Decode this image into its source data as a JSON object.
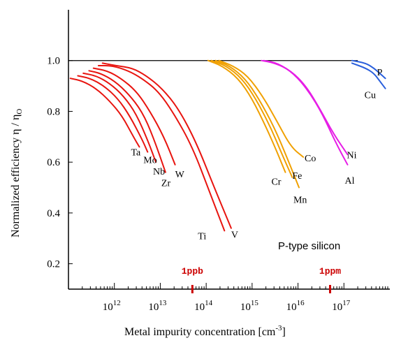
{
  "chart_data": {
    "type": "line",
    "title": "",
    "xlabel": "Metal impurity concentration  [cm",
    "xlabel_sup": "-3",
    "xlabel_end": "]",
    "ylabel": "Normalized efficiency  η / η",
    "ylabel_sub": "O",
    "x_scale": "log",
    "xlim": [
      100000000000.0,
      1e+18
    ],
    "ylim": [
      0.1,
      1.2
    ],
    "grid": false,
    "annotation": "P-type silicon",
    "y_ticks": [
      {
        "value": 0.2,
        "label": "0.2"
      },
      {
        "value": 0.4,
        "label": "0.4"
      },
      {
        "value": 0.6,
        "label": "0.6"
      },
      {
        "value": 0.8,
        "label": "0.8"
      },
      {
        "value": 1.0,
        "label": "1.0"
      }
    ],
    "x_ticks": [
      {
        "value": 1000000000000.0,
        "base": "10",
        "exp": "12"
      },
      {
        "value": 10000000000000.0,
        "base": "10",
        "exp": "13"
      },
      {
        "value": 100000000000000.0,
        "base": "10",
        "exp": "14"
      },
      {
        "value": 1000000000000000.0,
        "base": "10",
        "exp": "15"
      },
      {
        "value": 1e+16,
        "base": "10",
        "exp": "16"
      },
      {
        "value": 1e+17,
        "base": "10",
        "exp": "17"
      }
    ],
    "reference_line": {
      "y": 1.0
    },
    "markers": [
      {
        "label": "1ppb",
        "x": 50000000000000.0,
        "color": "#cc0000"
      },
      {
        "label": "1ppm",
        "x": 5e+16,
        "color": "#cc0000"
      }
    ],
    "series": [
      {
        "name": "Ta",
        "color": "#e8140f",
        "x": [
          110000000000.0,
          200000000000.0,
          400000000000.0,
          800000000000.0,
          1500000000000.0,
          2600000000000.0,
          3500000000000.0
        ],
        "y": [
          0.93,
          0.92,
          0.89,
          0.84,
          0.78,
          0.7,
          0.66
        ]
      },
      {
        "name": "Mo",
        "color": "#e8140f",
        "x": [
          160000000000.0,
          300000000000.0,
          600000000000.0,
          1200000000000.0,
          2200000000000.0,
          4000000000000.0,
          5300000000000.0
        ],
        "y": [
          0.94,
          0.93,
          0.9,
          0.85,
          0.78,
          0.69,
          0.64
        ]
      },
      {
        "name": "Nb",
        "color": "#e8140f",
        "x": [
          210000000000.0,
          400000000000.0,
          800000000000.0,
          1600000000000.0,
          3000000000000.0,
          5500000000000.0,
          8000000000000.0
        ],
        "y": [
          0.95,
          0.94,
          0.91,
          0.86,
          0.79,
          0.68,
          0.6
        ]
      },
      {
        "name": "Zr",
        "color": "#e8140f",
        "x": [
          280000000000.0,
          500000000000.0,
          1000000000000.0,
          2000000000000.0,
          4000000000000.0,
          7000000000000.0,
          13000000000000.0
        ],
        "y": [
          0.96,
          0.95,
          0.92,
          0.87,
          0.8,
          0.7,
          0.56
        ]
      },
      {
        "name": "W",
        "color": "#e8140f",
        "x": [
          350000000000.0,
          700000000000.0,
          1400000000000.0,
          3000000000000.0,
          6000000000000.0,
          12000000000000.0,
          21000000000000.0
        ],
        "y": [
          0.97,
          0.96,
          0.93,
          0.88,
          0.8,
          0.7,
          0.59
        ]
      },
      {
        "name": "Ti",
        "color": "#e8140f",
        "x": [
          450000000000.0,
          900000000000.0,
          2000000000000.0,
          4000000000000.0,
          9000000000000.0,
          20000000000000.0,
          50000000000000.0,
          120000000000000.0,
          250000000000000.0
        ],
        "y": [
          0.98,
          0.98,
          0.96,
          0.93,
          0.88,
          0.79,
          0.66,
          0.48,
          0.33
        ]
      },
      {
        "name": "V",
        "color": "#e8140f",
        "x": [
          550000000000.0,
          1100000000000.0,
          2500000000000.0,
          5000000000000.0,
          11000000000000.0,
          25000000000000.0,
          60000000000000.0,
          150000000000000.0,
          350000000000000.0
        ],
        "y": [
          0.99,
          0.98,
          0.97,
          0.94,
          0.89,
          0.81,
          0.68,
          0.5,
          0.34
        ]
      },
      {
        "name": "Cr",
        "color": "#f0a000",
        "x": [
          110000000000000.0,
          220000000000000.0,
          500000000000000.0,
          1000000000000000.0,
          2000000000000000.0,
          3500000000000000.0,
          5300000000000000.0
        ],
        "y": [
          1.0,
          0.98,
          0.93,
          0.85,
          0.74,
          0.64,
          0.56
        ]
      },
      {
        "name": "Fe",
        "color": "#f0a000",
        "x": [
          130000000000000.0,
          270000000000000.0,
          600000000000000.0,
          1200000000000000.0,
          2500000000000000.0,
          4500000000000000.0,
          7500000000000000.0
        ],
        "y": [
          1.0,
          0.98,
          0.93,
          0.85,
          0.74,
          0.63,
          0.54
        ]
      },
      {
        "name": "Mn",
        "color": "#f0a000",
        "x": [
          160000000000000.0,
          320000000000000.0,
          700000000000000.0,
          1400000000000000.0,
          3000000000000000.0,
          6000000000000000.0,
          1.05e+16
        ],
        "y": [
          1.0,
          0.98,
          0.93,
          0.85,
          0.74,
          0.61,
          0.5
        ]
      },
      {
        "name": "Co",
        "color": "#f0a000",
        "x": [
          190000000000000.0,
          380000000000000.0,
          800000000000000.0,
          1700000000000000.0,
          3500000000000000.0,
          7000000000000000.0,
          1.3e+16
        ],
        "y": [
          1.0,
          0.98,
          0.94,
          0.86,
          0.76,
          0.66,
          0.62
        ]
      },
      {
        "name": "Ni",
        "color": "#e61ee6",
        "x": [
          1600000000000000.0,
          3200000000000000.0,
          7000000000000000.0,
          1.5e+16,
          3e+16,
          6e+16,
          1.2e+17
        ],
        "y": [
          1.0,
          0.99,
          0.96,
          0.9,
          0.81,
          0.71,
          0.63
        ]
      },
      {
        "name": "Al",
        "color": "#e61ee6",
        "x": [
          1800000000000000.0,
          3600000000000000.0,
          8000000000000000.0,
          1.7e+16,
          3.4e+16,
          6.5e+16,
          1.2e+17
        ],
        "y": [
          1.0,
          0.99,
          0.95,
          0.88,
          0.79,
          0.68,
          0.59
        ]
      },
      {
        "name": "P",
        "color": "#2a5fdc",
        "x": [
          1.5e+17,
          3e+17,
          4.5e+17,
          6e+17,
          8e+17
        ],
        "y": [
          1.0,
          0.99,
          0.97,
          0.95,
          0.93
        ]
      },
      {
        "name": "Cu",
        "color": "#2a5fdc",
        "x": [
          1.5e+17,
          3e+17,
          4.5e+17,
          6e+17,
          8e+17
        ],
        "y": [
          0.99,
          0.97,
          0.95,
          0.92,
          0.89
        ]
      }
    ]
  }
}
